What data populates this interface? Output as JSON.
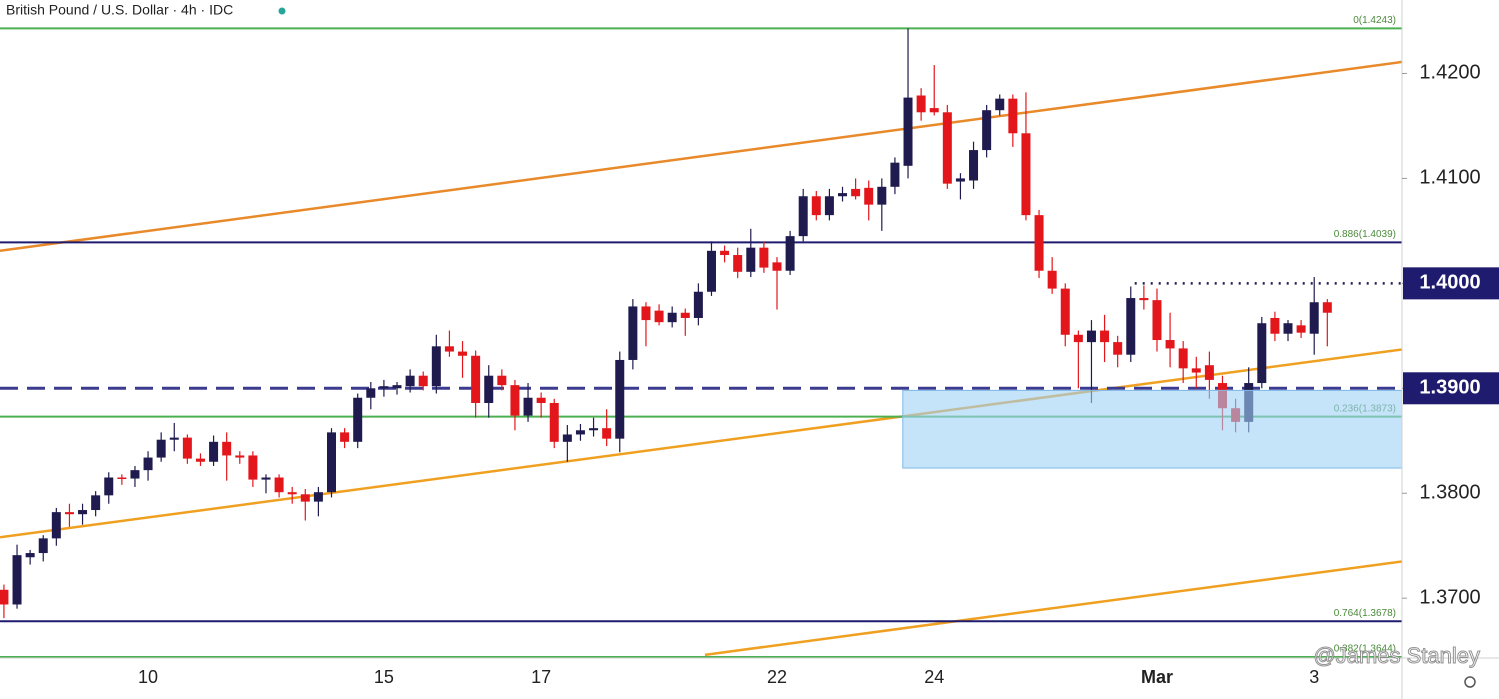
{
  "chart_data": {
    "type": "candlestick",
    "title": "British Pound / U.S. Dollar · 4h · IDC",
    "watermark": "@James Stanley",
    "up_color": "#1f1b4e",
    "down_color": "#e3171b",
    "categories": [
      null,
      null,
      null,
      null,
      null,
      null,
      null,
      null,
      null,
      null,
      null,
      "10",
      null,
      null,
      null,
      null,
      null,
      null,
      null,
      null,
      null,
      null,
      null,
      null,
      null,
      null,
      null,
      null,
      null,
      "15",
      null,
      null,
      null,
      null,
      null,
      null,
      null,
      null,
      null,
      null,
      null,
      "17",
      null,
      null,
      null,
      null,
      null,
      null,
      null,
      null,
      null,
      null,
      null,
      null,
      null,
      null,
      null,
      null,
      null,
      "22",
      null,
      null,
      null,
      null,
      null,
      null,
      null,
      null,
      null,
      null,
      null,
      "24",
      null,
      null,
      null,
      null,
      null,
      null,
      null,
      null,
      null,
      null,
      null,
      null,
      null,
      null,
      null,
      null,
      "Mar",
      null,
      null,
      null,
      null,
      null,
      null,
      null,
      null,
      null,
      null,
      null,
      "3",
      null
    ],
    "open": [
      1.3708,
      1.3694,
      1.3739,
      1.3743,
      1.3757,
      1.3782,
      1.378,
      1.3784,
      1.3798,
      1.3815,
      1.3814,
      1.3822,
      1.3834,
      1.3851,
      1.3853,
      1.3833,
      1.383,
      1.3849,
      1.3836,
      1.3836,
      1.3813,
      1.3815,
      1.3801,
      1.3799,
      1.3792,
      1.3801,
      1.3858,
      1.3849,
      1.3891,
      1.39,
      1.39,
      1.3902,
      1.3912,
      1.3902,
      1.394,
      1.3935,
      1.3931,
      1.3886,
      1.3912,
      1.3903,
      1.3874,
      1.3891,
      1.3886,
      1.3849,
      1.3856,
      1.386,
      1.3862,
      1.3852,
      1.3927,
      1.3978,
      1.3974,
      1.3963,
      1.3972,
      1.3967,
      1.3992,
      1.4031,
      1.4027,
      1.4011,
      1.4034,
      1.402,
      1.4012,
      1.4045,
      1.4083,
      1.4065,
      1.4083,
      1.409,
      1.4091,
      1.4075,
      1.4092,
      1.4112,
      1.4179,
      1.4167,
      1.4163,
      1.4097,
      1.4098,
      1.4127,
      1.4165,
      1.4176,
      1.4143,
      1.4065,
      1.4012,
      1.3995,
      1.3951,
      1.3944,
      1.3955,
      1.3944,
      1.3932,
      1.3986,
      1.3984,
      1.3946,
      1.3938,
      1.3919,
      1.3922,
      1.3905,
      1.3881,
      1.3868,
      1.3905,
      1.3967,
      1.3952,
      1.396,
      1.3952,
      1.3982
    ],
    "high": [
      1.3713,
      1.3751,
      1.3746,
      1.376,
      1.3786,
      1.379,
      1.379,
      1.3802,
      1.382,
      1.3818,
      1.3826,
      1.384,
      1.3858,
      1.3867,
      1.3856,
      1.3838,
      1.3855,
      1.3858,
      1.384,
      1.384,
      1.3818,
      1.3818,
      1.3806,
      1.3804,
      1.3806,
      1.3862,
      1.3862,
      1.3895,
      1.3906,
      1.3908,
      1.3906,
      1.3918,
      1.3916,
      1.3951,
      1.3955,
      1.3945,
      1.3936,
      1.3922,
      1.3918,
      1.3908,
      1.3905,
      1.3896,
      1.389,
      1.3865,
      1.3866,
      1.3872,
      1.388,
      1.3935,
      1.3985,
      1.3982,
      1.398,
      1.3978,
      1.3976,
      1.4,
      1.404,
      1.4036,
      1.4034,
      1.4052,
      1.404,
      1.4025,
      1.405,
      1.409,
      1.4088,
      1.409,
      1.4092,
      1.41,
      1.4098,
      1.41,
      1.412,
      1.4243,
      1.4186,
      1.4208,
      1.417,
      1.4105,
      1.4135,
      1.417,
      1.418,
      1.418,
      1.4182,
      1.407,
      1.4025,
      1.4,
      1.3955,
      1.3965,
      1.397,
      1.395,
      1.3997,
      1.3998,
      1.3995,
      1.3972,
      1.3945,
      1.393,
      1.3935,
      1.3912,
      1.389,
      1.392,
      1.3968,
      1.3973,
      1.3965,
      1.3965,
      1.4006,
      1.3985
    ],
    "low": [
      1.3681,
      1.369,
      1.3732,
      1.3735,
      1.375,
      1.3768,
      1.377,
      1.3778,
      1.379,
      1.3808,
      1.3806,
      1.3812,
      1.383,
      1.384,
      1.3828,
      1.3826,
      1.3826,
      1.3812,
      1.3828,
      1.3806,
      1.38,
      1.3796,
      1.379,
      1.3774,
      1.3778,
      1.3796,
      1.3843,
      1.3843,
      1.388,
      1.3892,
      1.3894,
      1.3896,
      1.3898,
      1.3895,
      1.393,
      1.391,
      1.3872,
      1.3872,
      1.3898,
      1.386,
      1.3868,
      1.3872,
      1.3843,
      1.383,
      1.385,
      1.3854,
      1.3845,
      1.3839,
      1.3918,
      1.394,
      1.396,
      1.3958,
      1.395,
      1.396,
      1.3988,
      1.402,
      1.4005,
      1.4006,
      1.401,
      1.3975,
      1.4008,
      1.404,
      1.406,
      1.406,
      1.4078,
      1.408,
      1.406,
      1.405,
      1.4085,
      1.41,
      1.4155,
      1.416,
      1.409,
      1.408,
      1.409,
      1.412,
      1.416,
      1.413,
      1.406,
      1.4005,
      1.399,
      1.394,
      1.39,
      1.3886,
      1.3925,
      1.392,
      1.3925,
      1.3975,
      1.3935,
      1.392,
      1.3905,
      1.39,
      1.389,
      1.386,
      1.3858,
      1.3858,
      1.39,
      1.3945,
      1.3945,
      1.3948,
      1.3932,
      1.394
    ],
    "close": [
      1.3694,
      1.3741,
      1.3743,
      1.3757,
      1.3782,
      1.378,
      1.3784,
      1.3798,
      1.3815,
      1.3814,
      1.3822,
      1.3834,
      1.3851,
      1.3853,
      1.3833,
      1.383,
      1.3849,
      1.3836,
      1.3834,
      1.3813,
      1.3815,
      1.3801,
      1.3799,
      1.3792,
      1.3801,
      1.3858,
      1.3849,
      1.3891,
      1.39,
      1.3902,
      1.3903,
      1.3912,
      1.3902,
      1.394,
      1.3935,
      1.3931,
      1.3886,
      1.3912,
      1.3903,
      1.3874,
      1.3891,
      1.3886,
      1.3849,
      1.3856,
      1.386,
      1.3862,
      1.3852,
      1.3927,
      1.3978,
      1.3965,
      1.3963,
      1.3972,
      1.3967,
      1.3992,
      1.4031,
      1.4027,
      1.4011,
      1.4034,
      1.4015,
      1.4012,
      1.4045,
      1.4083,
      1.4065,
      1.4083,
      1.4086,
      1.4083,
      1.4075,
      1.4092,
      1.4115,
      1.4177,
      1.4163,
      1.4163,
      1.4095,
      1.41,
      1.4127,
      1.4165,
      1.4176,
      1.4143,
      1.4065,
      1.4012,
      1.3995,
      1.3951,
      1.3944,
      1.3955,
      1.3944,
      1.3932,
      1.3986,
      1.3984,
      1.3946,
      1.3938,
      1.3919,
      1.3915,
      1.3908,
      1.3881,
      1.3868,
      1.3905,
      1.3962,
      1.3952,
      1.3962,
      1.3953,
      1.3982,
      1.3972
    ],
    "xlim": [
      -0.3,
      106.7
    ],
    "ylim": [
      1.3643,
      1.427
    ],
    "yticks": [
      {
        "value": 1.42,
        "label": "1.4200"
      },
      {
        "value": 1.41,
        "label": "1.4100"
      },
      {
        "value": 1.4,
        "label": "1.4000",
        "highlight": true
      },
      {
        "value": 1.39,
        "label": "1.3900",
        "highlight": true
      },
      {
        "value": 1.38,
        "label": "1.3800"
      },
      {
        "value": 1.37,
        "label": "1.3700"
      }
    ],
    "levels": [
      {
        "label": "0(1.4243)",
        "value": 1.4243,
        "color": "#4caf50"
      },
      {
        "label": "0.886(1.4039)",
        "value": 1.4039,
        "color": "#1f1b6e"
      },
      {
        "label": "0.236(1.3873)",
        "value": 1.3873,
        "color": "#4caf50"
      },
      {
        "label": "0.764(1.3678)",
        "value": 1.3678,
        "color": "#1f1b6e"
      },
      {
        "label": "0.382(1.3644)",
        "value": 1.3644,
        "color": "#4caf50"
      }
    ],
    "dashed_line": {
      "value": 1.39,
      "color": "#3b3b8f"
    },
    "dotted_line": {
      "value": 1.4,
      "start": 86.3,
      "color": "#1f1b4e"
    },
    "zone": {
      "top": 1.3898,
      "bottom": 1.3824,
      "start": 68.6,
      "color": "#9fd0f5"
    },
    "trendlines": [
      {
        "x": [
          -0.3,
          106.7
        ],
        "y": [
          1.4031,
          1.4211
        ],
        "color": "#e8892a"
      },
      {
        "x": [
          -0.3,
          106.7
        ],
        "y": [
          1.3758,
          1.3937
        ],
        "color": "#f0a020"
      },
      {
        "x": [
          53.5,
          106.7
        ],
        "y": [
          1.3646,
          1.3735
        ],
        "color": "#f0a020"
      }
    ],
    "grid": false
  }
}
